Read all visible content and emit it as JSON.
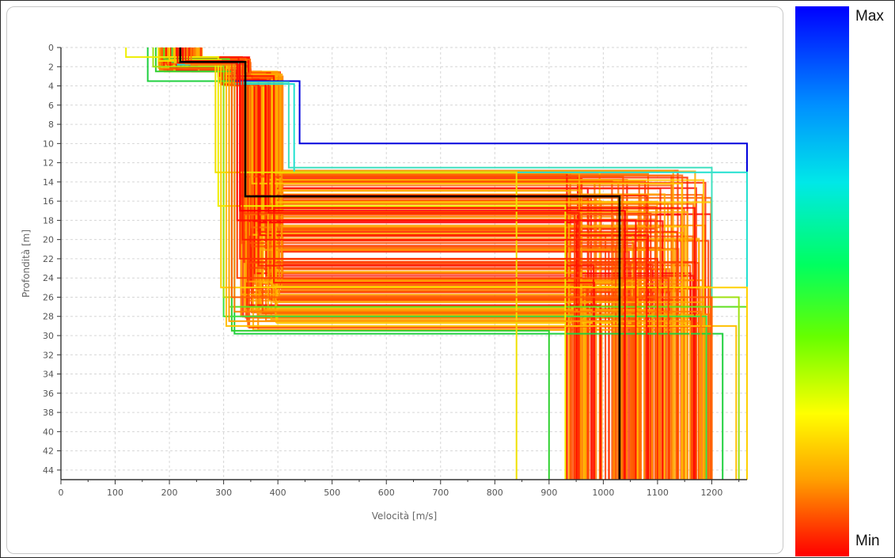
{
  "chart_data": {
    "type": "line",
    "xlabel": "Velocità [m/s]",
    "ylabel": "Profondità [m]",
    "xlim": [
      0,
      1265
    ],
    "ylim": [
      0,
      45
    ],
    "y_inverted": true,
    "grid": true,
    "x_ticks": [
      "0",
      "100",
      "200",
      "300",
      "400",
      "500",
      "600",
      "700",
      "800",
      "900",
      "1000",
      "1100",
      "1200"
    ],
    "y_ticks": [
      "0",
      "2",
      "4",
      "6",
      "8",
      "10",
      "12",
      "14",
      "16",
      "18",
      "20",
      "22",
      "24",
      "26",
      "28",
      "30",
      "32",
      "34",
      "36",
      "38",
      "40",
      "42",
      "44"
    ],
    "colorbar": {
      "max_label": "Max",
      "min_label": "Min",
      "colors": [
        "#0000ff",
        "#00e8e8",
        "#00ff60",
        "#ffff00",
        "#ff0000"
      ]
    },
    "best_profile": {
      "color": "#000000",
      "velocity": [
        220,
        340,
        1030
      ],
      "layer_bottom": [
        1.5,
        15.5,
        45
      ]
    },
    "sampled_profiles": [
      {
        "color": "#0000dd",
        "velocity": [
          230,
          310,
          440,
          1265
        ],
        "layer_bottom": [
          1.5,
          3.5,
          10,
          45
        ]
      },
      {
        "color": "#20e0d0",
        "velocity": [
          215,
          320,
          430,
          1265
        ],
        "layer_bottom": [
          1.8,
          3.8,
          13,
          45
        ]
      },
      {
        "color": "#40e0c0",
        "velocity": [
          225,
          330,
          420,
          1200
        ],
        "layer_bottom": [
          1.6,
          3.6,
          12.5,
          45
        ]
      },
      {
        "color": "#20d040",
        "velocity": [
          160,
          320,
          450,
          1220
        ],
        "layer_bottom": [
          3.5,
          29.8,
          18,
          45
        ]
      },
      {
        "color": "#30d030",
        "velocity": [
          175,
          315,
          440,
          900
        ],
        "layer_bottom": [
          2.5,
          29.5,
          19,
          45
        ]
      },
      {
        "color": "#40e040",
        "velocity": [
          205,
          300,
          445,
          1190
        ],
        "layer_bottom": [
          1.5,
          28,
          20,
          45
        ]
      },
      {
        "color": "#60e020",
        "velocity": [
          190,
          310,
          380,
          1265
        ],
        "layer_bottom": [
          1.2,
          27,
          23.5,
          45
        ]
      },
      {
        "color": "#a0e010",
        "velocity": [
          170,
          300,
          350,
          1250
        ],
        "layer_bottom": [
          2.0,
          26,
          24.5,
          45
        ]
      },
      {
        "color": "#eeee00",
        "velocity": [
          120,
          290,
          440,
          930
        ],
        "layer_bottom": [
          1.0,
          16.5,
          10,
          45
        ]
      },
      {
        "color": "#f0e000",
        "velocity": [
          180,
          285,
          400,
          840
        ],
        "layer_bottom": [
          1.4,
          13,
          11.5,
          45
        ]
      },
      {
        "color": "#ffd000",
        "velocity": [
          200,
          295,
          410,
          1265
        ],
        "layer_bottom": [
          1.3,
          25,
          12,
          45
        ]
      },
      {
        "color": "#ffc000",
        "velocity": [
          210,
          305,
          350,
          1245
        ],
        "layer_bottom": [
          1.6,
          29,
          24.8,
          45
        ]
      },
      {
        "color": "#ffa000",
        "velocity": [
          230,
          310,
          360,
          1160
        ],
        "layer_bottom": [
          1.7,
          28.5,
          22,
          45
        ]
      },
      {
        "color": "#ff8000",
        "velocity": [
          240,
          320,
          370,
          1180
        ],
        "layer_bottom": [
          1.8,
          27.5,
          20,
          45
        ]
      },
      {
        "color": "#ff6000",
        "velocity": [
          220,
          315,
          380,
          1200
        ],
        "layer_bottom": [
          1.5,
          26,
          18,
          45
        ]
      },
      {
        "color": "#ff4000",
        "velocity": [
          235,
          325,
          390,
          1120
        ],
        "layer_bottom": [
          1.6,
          24,
          17,
          45
        ]
      },
      {
        "color": "#ff3000",
        "velocity": [
          225,
          330,
          395,
          1100
        ],
        "layer_bottom": [
          1.5,
          22,
          16.5,
          45
        ]
      },
      {
        "color": "#ff2000",
        "velocity": [
          230,
          335,
          400,
          1080
        ],
        "layer_bottom": [
          1.4,
          20,
          16,
          45
        ]
      },
      {
        "color": "#ff1000",
        "velocity": [
          215,
          325,
          385,
          1060
        ],
        "layer_bottom": [
          1.6,
          18,
          15.5,
          45
        ]
      },
      {
        "color": "#ff0000",
        "velocity": [
          225,
          330,
          390,
          1040
        ],
        "layer_bottom": [
          1.5,
          17,
          15,
          45
        ]
      }
    ],
    "ensemble": {
      "count": 180,
      "palette": [
        "#ff0000",
        "#ff1400",
        "#ff2800",
        "#ff3c00",
        "#ff5000",
        "#ff6400",
        "#ff7800",
        "#ff9000",
        "#ffa800",
        "#ffc800"
      ],
      "vs1_range": [
        180,
        260
      ],
      "h1_range": [
        1.0,
        2.5
      ],
      "vs2_range": [
        290,
        350
      ],
      "h2_range": [
        2.5,
        4.0
      ],
      "vs3_range": [
        330,
        410
      ],
      "h3_range": [
        12.8,
        29.5
      ],
      "vs4_range": [
        930,
        1200
      ],
      "h4_range": [
        14,
        18
      ]
    }
  }
}
